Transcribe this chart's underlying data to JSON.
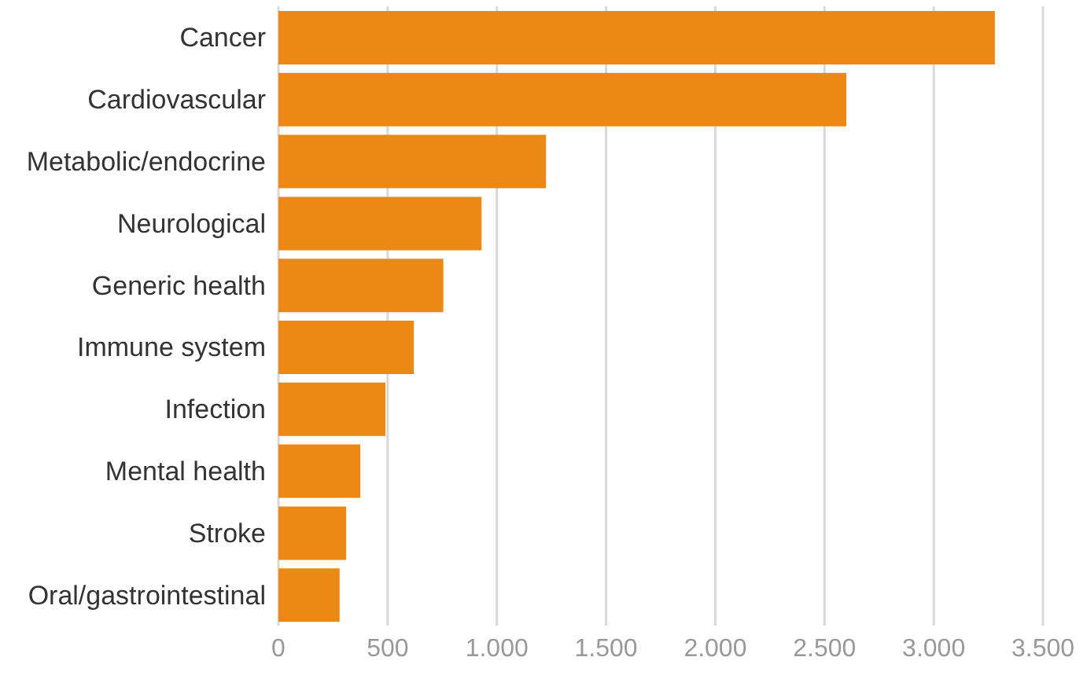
{
  "chart_data": {
    "type": "bar",
    "orientation": "horizontal",
    "categories": [
      "Cancer",
      "Cardiovascular",
      "Metabolic/endocrine",
      "Neurological",
      "Generic health",
      "Immune system",
      "Infection",
      "Mental health",
      "Stroke",
      "Oral/gastrointestinal"
    ],
    "values": [
      3280,
      2600,
      1225,
      930,
      755,
      620,
      490,
      375,
      310,
      280
    ],
    "color": "#ec8914",
    "xlim": [
      0,
      3500
    ],
    "xticks": [
      0,
      500,
      {
        "value": 1000,
        "label": "1.000"
      },
      {
        "value": 1500,
        "label": "1.500"
      },
      {
        "value": 2000,
        "label": "2.000"
      },
      {
        "value": 2500,
        "label": "2.500"
      },
      {
        "value": 3000,
        "label": "3.000"
      },
      {
        "value": 3500,
        "label": "3.500"
      }
    ],
    "grid": "x",
    "legend": false
  }
}
